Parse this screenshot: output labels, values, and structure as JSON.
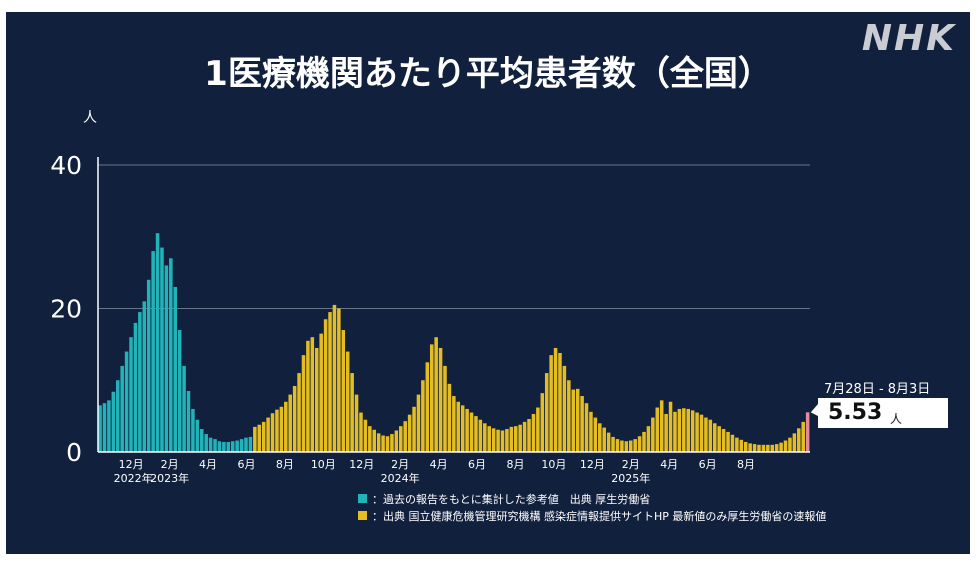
{
  "logo": "NHK",
  "title": "1医療機関あたり平均患者数（全国）",
  "callout": {
    "range": "7月28日 - 8月3日",
    "value": "5.53",
    "unit": "人"
  },
  "legend": [
    {
      "swatch": "#22b3b8",
      "text": "：過去の報告をもとに集計した参考値　出典 厚生労働省"
    },
    {
      "swatch": "#e4bd22",
      "text": "：出典 国立健康危機管理研究機構 感染症情報提供サイトHP 最新値のみ厚生労働省の速報値"
    }
  ],
  "chart_data": {
    "type": "bar",
    "ylabel": "人",
    "ylim": [
      0,
      40
    ],
    "yticks": [
      0,
      20,
      40
    ],
    "xtick_labels": [
      "12月",
      "2月",
      "4月",
      "6月",
      "8月",
      "10月",
      "12月",
      "2月",
      "4月",
      "6月",
      "8月",
      "10月",
      "12月",
      "2月",
      "4月",
      "6月",
      "8月"
    ],
    "year_labels": [
      "2022年",
      "2023年",
      "2024年",
      "2025年"
    ],
    "colors": {
      "reference": "#22b3b8",
      "niid": "#e4bd22",
      "latest": "#e48a9a"
    },
    "series": [
      {
        "values": [
          6.5,
          6.8,
          7.2,
          8.4,
          10.0,
          12.0,
          14.0,
          16.0,
          18.0,
          19.5,
          21.0,
          24.0,
          28.0,
          30.5,
          28.5,
          26.0,
          27.0,
          23.0,
          17.0,
          12.0,
          8.5,
          6.0,
          4.5,
          3.2,
          2.5,
          2.0,
          1.8,
          1.5,
          1.4,
          1.4,
          1.5,
          1.6,
          1.8,
          2.0,
          2.1
        ]
      },
      {
        "values": [
          3.5,
          3.8,
          4.2,
          4.8,
          5.4,
          5.9,
          6.3,
          7.0,
          8.0,
          9.2,
          11.0,
          13.5,
          15.5,
          16.0,
          14.5,
          16.5,
          18.5,
          19.5,
          20.5,
          20.0,
          17.0,
          14.0,
          11.0,
          8.0,
          5.5,
          4.5,
          3.6,
          3.1,
          2.6,
          2.3,
          2.2,
          2.5,
          3.0,
          3.6,
          4.3,
          5.2,
          6.3,
          8.0,
          10.0,
          12.5,
          15.0,
          16.0,
          14.5,
          12.0,
          9.5,
          7.8,
          7.0,
          6.5,
          6.0,
          5.5,
          5.0,
          4.5,
          4.0,
          3.6,
          3.3,
          3.1,
          3.0,
          3.2,
          3.5,
          3.6,
          3.8,
          4.2,
          4.6,
          5.3,
          6.2,
          8.2,
          11.0,
          13.5,
          14.5,
          13.8,
          12.0,
          10.0,
          8.7,
          8.8,
          7.8,
          6.8,
          5.6,
          4.8,
          4.0,
          3.4,
          2.7,
          2.1,
          1.8,
          1.6,
          1.5,
          1.6,
          1.8,
          2.2,
          2.8,
          3.6,
          4.8,
          6.2,
          7.2,
          5.3,
          7.0,
          5.6,
          6.0,
          6.1,
          6.0,
          5.8,
          5.5,
          5.2,
          4.8,
          4.5,
          4.0,
          3.6,
          3.2,
          2.8,
          2.4,
          2.0,
          1.7,
          1.4,
          1.2,
          1.1,
          1.0,
          1.0,
          1.0,
          1.0,
          1.1,
          1.3,
          1.6,
          2.0,
          2.6,
          3.3,
          4.2
        ]
      },
      {
        "values": [
          5.53
        ]
      }
    ]
  }
}
